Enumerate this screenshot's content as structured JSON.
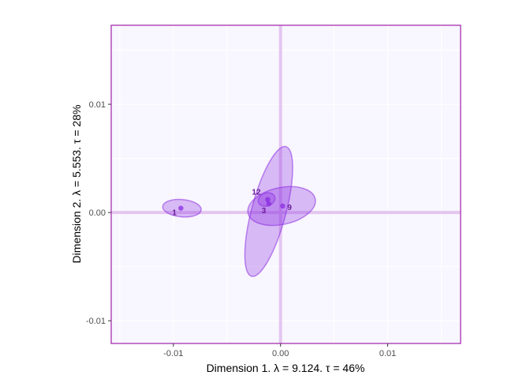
{
  "chart_data": {
    "type": "scatter",
    "title": "",
    "xlabel": "Dimension 1.   λ = 9.124.  τ = 46%",
    "ylabel": "Dimension 2.   λ = 5.553.  τ = 28%",
    "xlim": [
      -0.0158,
      0.0168
    ],
    "ylim": [
      -0.0121,
      0.0173
    ],
    "x_ticks": [
      -0.01,
      0.0,
      0.01
    ],
    "y_ticks": [
      -0.01,
      0.0,
      0.01
    ],
    "x_tick_labels": [
      "-0.01",
      "0.00",
      "0.01"
    ],
    "y_tick_labels": [
      "-0.01",
      "0.00",
      "0.01"
    ],
    "grid": true,
    "points": [
      {
        "label": "1",
        "x": -0.0093,
        "y": 0.0004,
        "ellipse": {
          "cx": -0.0092,
          "cy": 0.0004,
          "rx": 0.0018,
          "ry": 0.0008,
          "angle": -5
        }
      },
      {
        "label": "12",
        "x": -0.0012,
        "y": 0.0012,
        "ellipse": {
          "cx": -0.0013,
          "cy": 0.0012,
          "rx": 0.0008,
          "ry": 0.0006,
          "angle": 20
        }
      },
      {
        "label": "3",
        "x": -0.0011,
        "y": 0.0008,
        "ellipse": {
          "cx": -0.0011,
          "cy": 0.0001,
          "rx": 0.0062,
          "ry": 0.0016,
          "angle": 75
        }
      },
      {
        "label": "9",
        "x": 0.0002,
        "y": 0.0006,
        "ellipse": {
          "cx": 0.0001,
          "cy": 0.0006,
          "rx": 0.0032,
          "ry": 0.0017,
          "angle": 12
        }
      }
    ],
    "colors": {
      "panel_bg": "#f8f6fe",
      "panel_border": "#a020a8",
      "grid": "#ffffff",
      "zero_line": "#e4c6f0",
      "ellipse_fill": "#8a2be2",
      "ellipse_stroke": "#8a2be2",
      "point": "#8a2be2",
      "label": "#6a1b9a"
    }
  }
}
